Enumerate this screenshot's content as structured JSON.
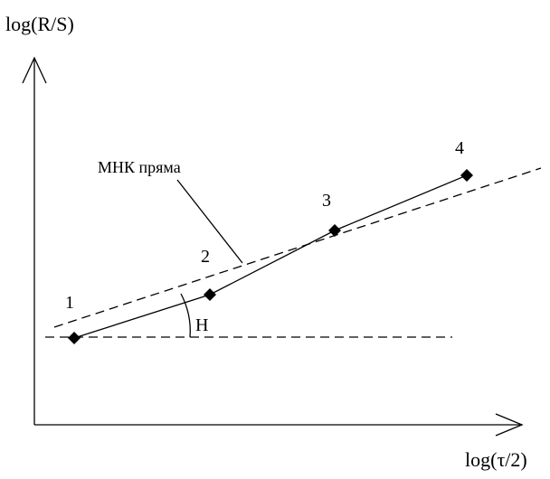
{
  "axes": {
    "y_label": "log(R/S)",
    "x_label": "log(τ/2)"
  },
  "points": [
    {
      "label": "1"
    },
    {
      "label": "2"
    },
    {
      "label": "3"
    },
    {
      "label": "4"
    }
  ],
  "annotations": {
    "fit_line_label": "МНК пряма",
    "angle_label": "H"
  },
  "colors": {
    "line": "#000000",
    "background": "#ffffff"
  },
  "icons": {
    "point_marker": "diamond-marker"
  }
}
